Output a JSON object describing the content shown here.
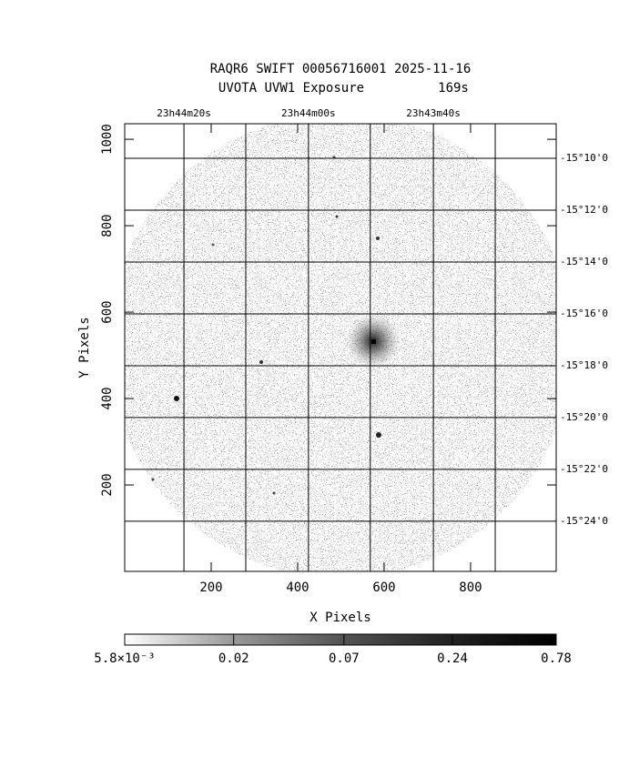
{
  "chart_data": {
    "type": "image",
    "title": "RAQR6 SWIFT 00056716001 2025-11-16",
    "subtitle": "UVOTA UVW1 Exposure",
    "exposure": "169s",
    "xlabel": "X Pixels",
    "ylabel": "Y Pixels",
    "xlim": [
      0,
      998
    ],
    "ylim": [
      0,
      1036
    ],
    "xticks": [
      200,
      400,
      600,
      800
    ],
    "yticks": [
      200,
      400,
      600,
      800,
      1000
    ],
    "x2grid": [
      137,
      280,
      425,
      568,
      714,
      857
    ],
    "x2ticks": [
      {
        "value": 137,
        "label": "23h44m20s"
      },
      {
        "value": 425,
        "label": "23h44m00s"
      },
      {
        "value": 714,
        "label": "23h43m40s"
      }
    ],
    "y2ticks": [
      {
        "value": 956,
        "label": "-15°10'0"
      },
      {
        "value": 836,
        "label": "-15°12'0"
      },
      {
        "value": 716,
        "label": "-15°14'0"
      },
      {
        "value": 596,
        "label": "-15°16'0"
      },
      {
        "value": 476,
        "label": "-15°18'0"
      },
      {
        "value": 356,
        "label": "-15°20'0"
      },
      {
        "value": 236,
        "label": "-15°22'0"
      },
      {
        "value": 116,
        "label": "-15°24'0"
      }
    ],
    "colorbar": {
      "lim": [
        0.0058,
        0.78
      ],
      "log": true,
      "ticks": [
        {
          "value": 0.0058,
          "label": "5.8×10⁻³"
        },
        0.02,
        0.07,
        0.24,
        0.78
      ]
    }
  }
}
